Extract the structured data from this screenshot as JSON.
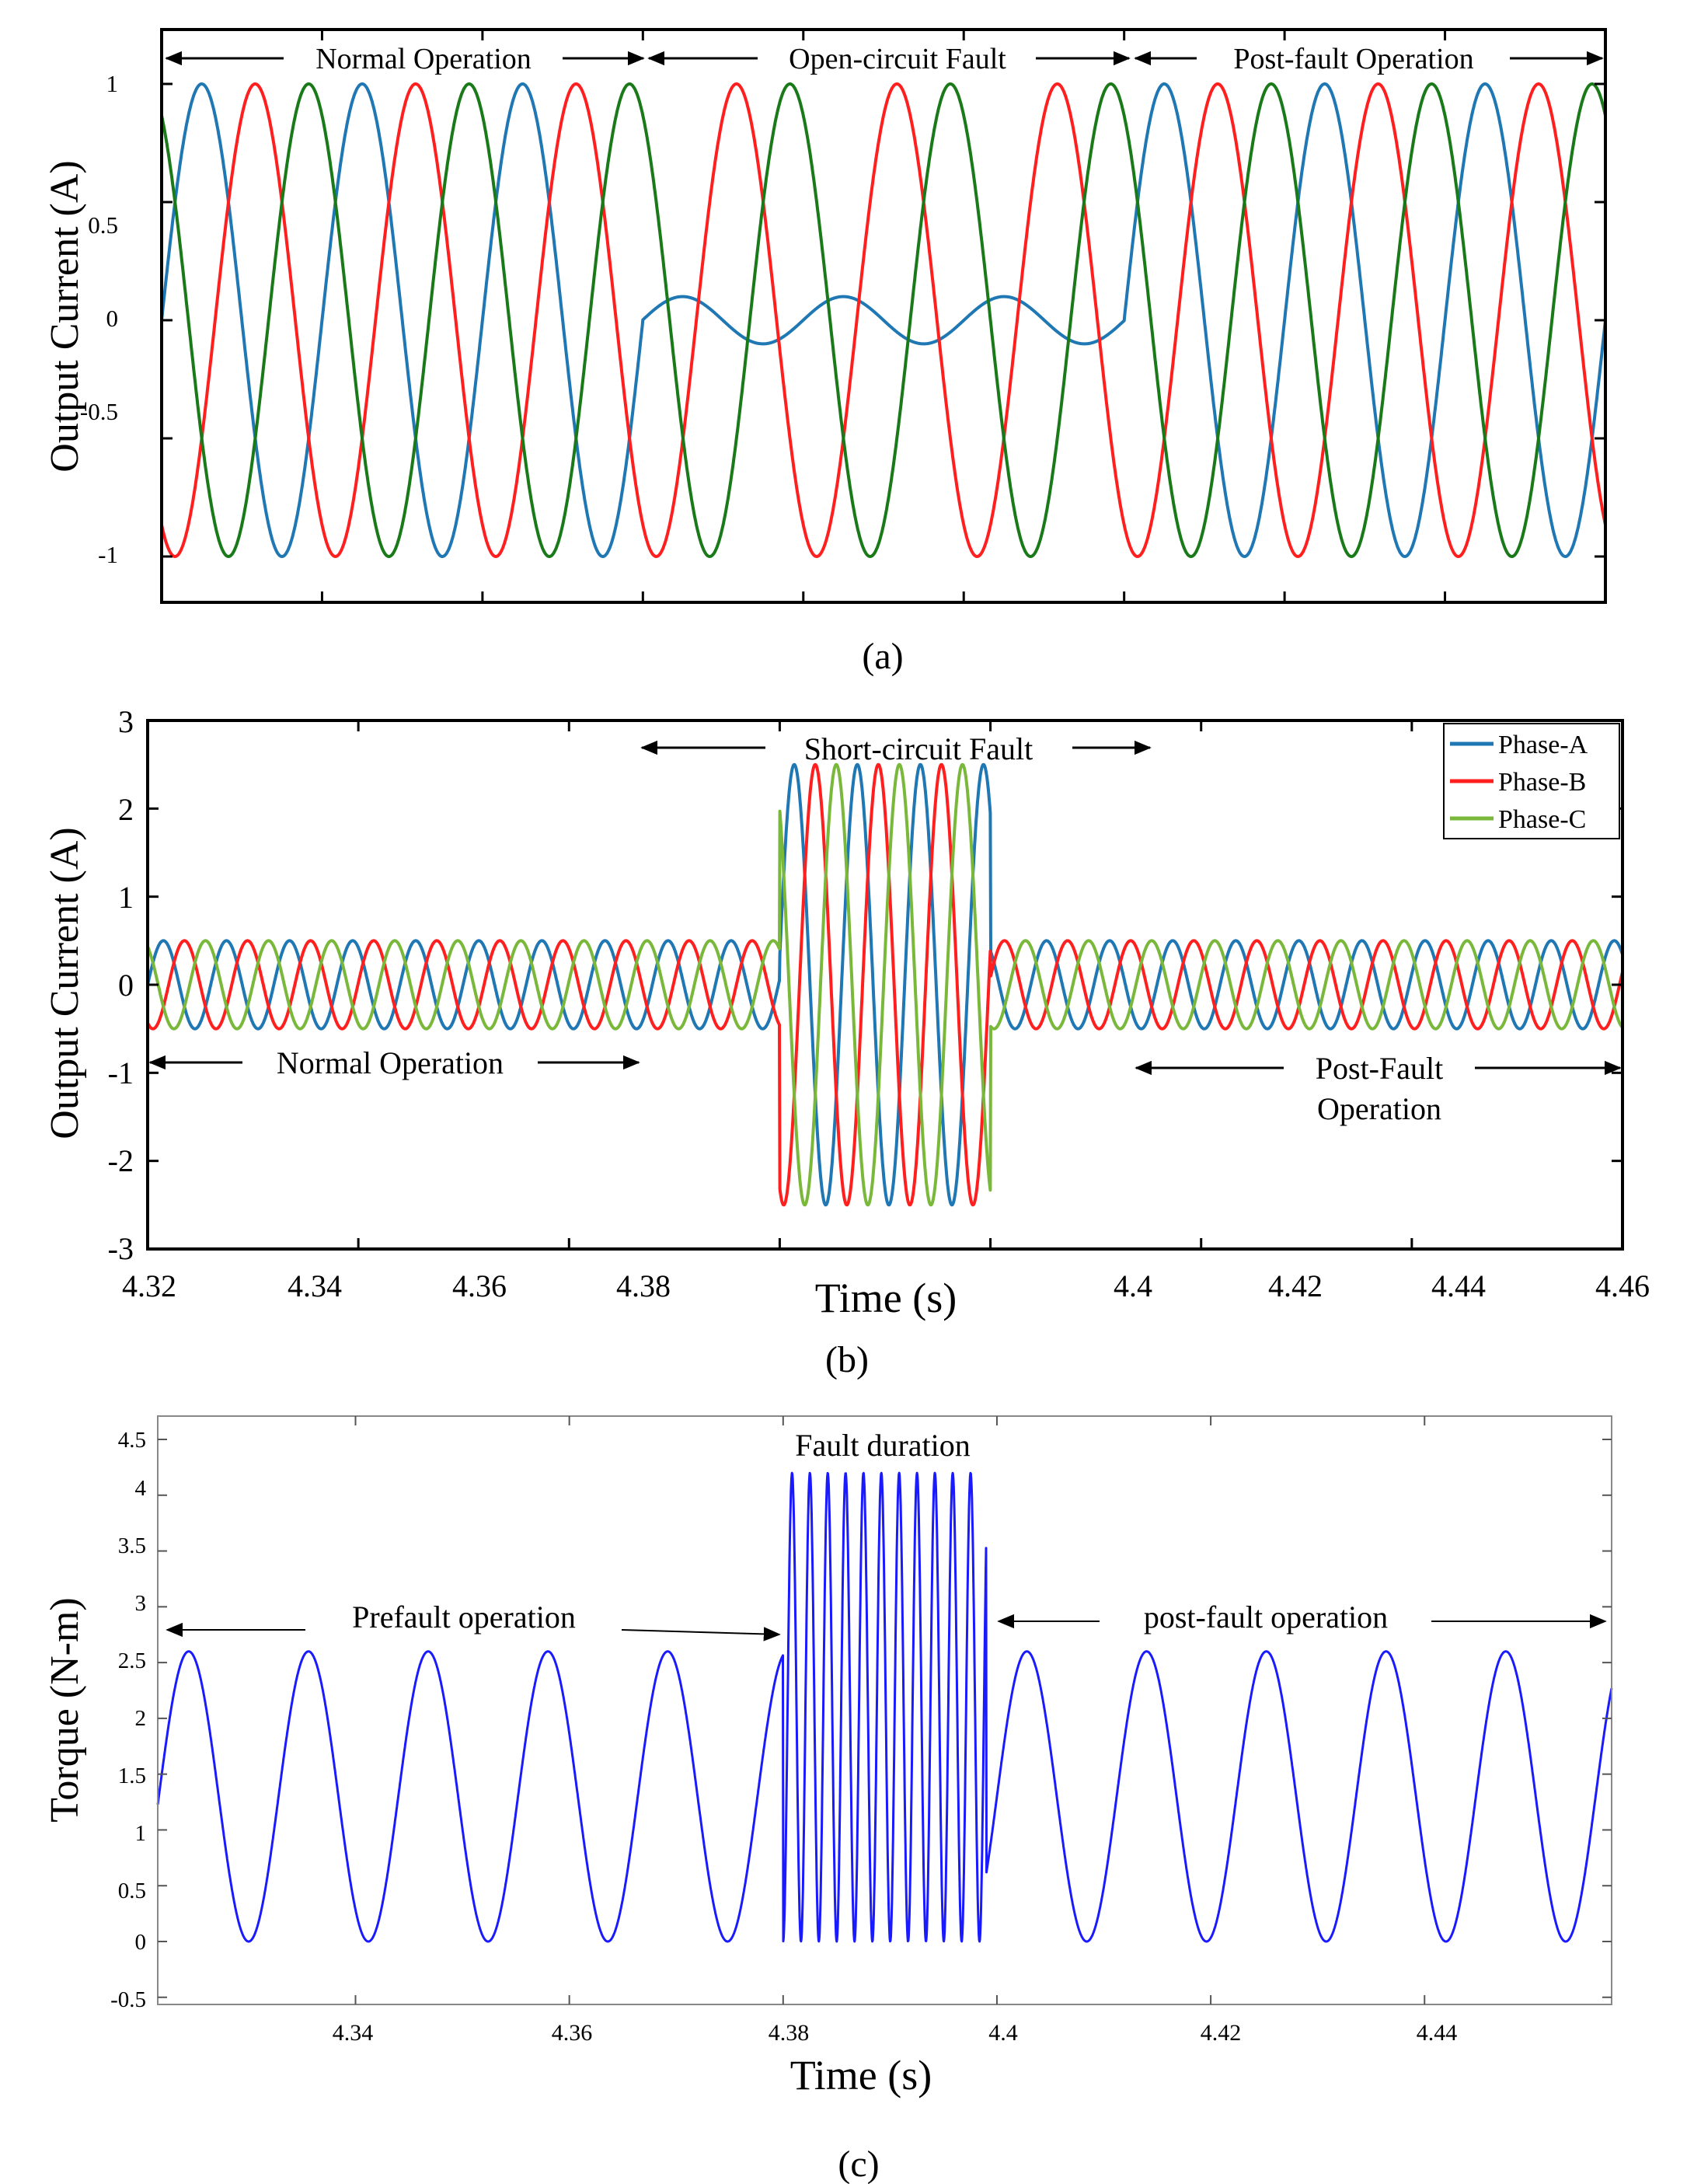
{
  "colors": {
    "phase_a": "#1f77b4",
    "phase_b": "#ff1f1f",
    "phase_c_a": "#1a7a1a",
    "phase_c_b": "#7ab83b",
    "torque": "#1a1aff",
    "axis": "#000000"
  },
  "chart_data": [
    {
      "id": "a",
      "type": "line",
      "caption": "(a)",
      "ylabel": "Output Current (A)",
      "xlabel": "",
      "ylim": [
        -1.2,
        1.2
      ],
      "yticks": [
        "1",
        "0.5",
        "0",
        "-0.5",
        "-1"
      ],
      "ytick_values": [
        1,
        0.5,
        0,
        -0.5,
        -1
      ],
      "frequency_cycles_over_window": 9,
      "x": {
        "start": 0,
        "end": 1
      },
      "segments": [
        {
          "label": "Normal Operation",
          "from": 0,
          "to": 0.333
        },
        {
          "label": "Open-circuit Fault",
          "from": 0.333,
          "to": 0.667
        },
        {
          "label": "Post-fault Operation",
          "from": 0.667,
          "to": 1
        }
      ],
      "series": [
        {
          "name": "Phase-A",
          "amplitude_normal": 1.0,
          "amplitude_fault": 0.1,
          "phase_deg": 0
        },
        {
          "name": "Phase-B",
          "amplitude_normal": 1.0,
          "amplitude_fault": 1.0,
          "phase_deg": -120
        },
        {
          "name": "Phase-C",
          "amplitude_normal": 1.0,
          "amplitude_fault": 1.0,
          "phase_deg": 120
        }
      ]
    },
    {
      "id": "b",
      "type": "line",
      "caption": "(b)",
      "ylabel": "Output Current (A)",
      "xlabel": "Time (s)",
      "xlim": [
        4.32,
        4.46
      ],
      "ylim": [
        -3,
        3
      ],
      "xticks": [
        "4.32",
        "4.34",
        "4.36",
        "4.38",
        "4.4",
        "4.42",
        "4.44",
        "4.46"
      ],
      "xtick_values": [
        4.32,
        4.34,
        4.36,
        4.38,
        4.4,
        4.42,
        4.44,
        4.46
      ],
      "yticks": [
        "3",
        "2",
        "1",
        "0",
        "-1",
        "-2",
        "-3"
      ],
      "ytick_values": [
        3,
        2,
        1,
        0,
        -1,
        -2,
        -3
      ],
      "frequency_hz": 167,
      "fault_start": 4.38,
      "fault_end": 4.4,
      "segments": [
        {
          "label": "Normal Operation",
          "from": 4.32,
          "to": 4.38
        },
        {
          "label": "Short-circuit Fault",
          "from": 4.38,
          "to": 4.4
        },
        {
          "label_line1": "Post-Fault",
          "label_line2": "Operation",
          "from": 4.4,
          "to": 4.46
        }
      ],
      "legend": [
        "Phase-A",
        "Phase-B",
        "Phase-C"
      ],
      "legend_position": "top-right",
      "series": [
        {
          "name": "Phase-A",
          "amplitude_normal": 0.5,
          "amplitude_fault": 2.5,
          "phase_deg": 0
        },
        {
          "name": "Phase-B",
          "amplitude_normal": 0.5,
          "amplitude_fault": 2.5,
          "phase_deg": -120
        },
        {
          "name": "Phase-C",
          "amplitude_normal": 0.5,
          "amplitude_fault": 2.5,
          "phase_deg": 120
        }
      ]
    },
    {
      "id": "c",
      "type": "line",
      "caption": "(c)",
      "ylabel": "Torque (N-m)",
      "xlabel": "Time (s)",
      "xlim": [
        4.3215,
        4.4575
      ],
      "ylim": [
        -0.5,
        4.6
      ],
      "xticks": [
        "4.34",
        "4.36",
        "4.38",
        "4.4",
        "4.42",
        "4.44"
      ],
      "xtick_values": [
        4.34,
        4.36,
        4.38,
        4.4,
        4.42,
        4.44
      ],
      "yticks": [
        "4.5",
        "4",
        "3.5",
        "3",
        "2.5",
        "2",
        "1.5",
        "1",
        "0.5",
        "0",
        "-0.5"
      ],
      "ytick_values": [
        4.5,
        4,
        3.5,
        3,
        2.5,
        2,
        1.5,
        1,
        0.5,
        0,
        -0.5
      ],
      "fault_start": 4.38,
      "fault_end": 4.399,
      "normal_period_s": 0.0112,
      "normal_min": 0,
      "normal_max": 2.6,
      "fault_period_s": 0.00167,
      "fault_min": 0,
      "fault_max": 4.2,
      "annotations": {
        "fault": "Fault duration",
        "prefault": "Prefault operation",
        "postfault": "post-fault operation"
      }
    }
  ]
}
